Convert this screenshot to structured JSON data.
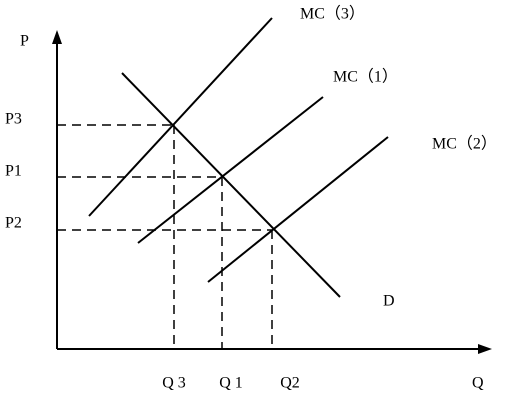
{
  "axes": {
    "y_label": "P",
    "x_label": "Q"
  },
  "price_labels": [
    "P3",
    "P1",
    "P2"
  ],
  "quantity_labels": [
    "Q 3",
    "Q 1",
    "Q2"
  ],
  "curves": [
    "MC（3）",
    "MC（1）",
    "MC（2）",
    "D"
  ]
}
